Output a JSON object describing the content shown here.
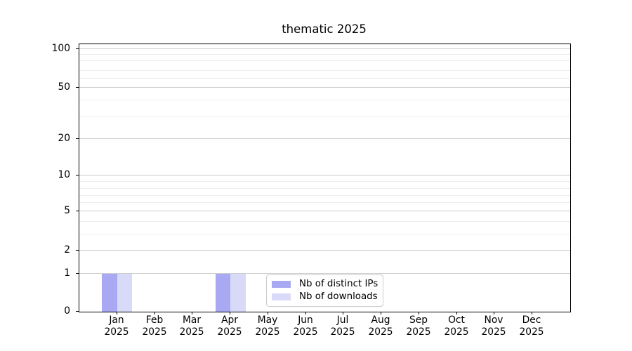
{
  "title": "thematic 2025",
  "chart_data": {
    "type": "bar",
    "title": "thematic 2025",
    "categories": [
      "Jan 2025",
      "Feb 2025",
      "Mar 2025",
      "Apr 2025",
      "May 2025",
      "Jun 2025",
      "Jul 2025",
      "Aug 2025",
      "Sep 2025",
      "Oct 2025",
      "Nov 2025",
      "Dec 2025"
    ],
    "series": [
      {
        "name": "Nb of distinct IPs",
        "color": "#a9a9f3",
        "values": [
          1,
          0,
          0,
          1,
          0,
          0,
          0,
          0,
          0,
          0,
          0,
          0
        ]
      },
      {
        "name": "Nb of downloads",
        "color": "#d9d9f8",
        "values": [
          1,
          0,
          0,
          1,
          0,
          0,
          0,
          0,
          0,
          0,
          0,
          0
        ]
      }
    ],
    "xlabel": "",
    "ylabel": "",
    "yscale": "log-like with linear segment to 0",
    "ylim": [
      0,
      100
    ],
    "yticks_major": [
      0,
      1,
      2,
      5,
      10,
      20,
      50,
      100
    ],
    "yticks_minor": [
      3,
      4,
      6,
      7,
      8,
      9,
      30,
      40,
      60,
      70,
      80,
      90
    ],
    "grid": true,
    "legend_position": "bottom-center-inside"
  }
}
